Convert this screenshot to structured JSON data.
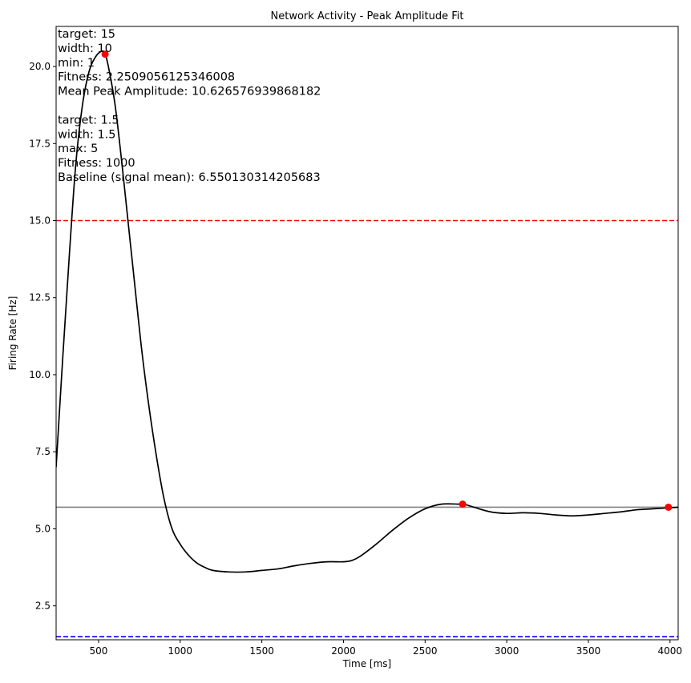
{
  "chart_data": {
    "type": "line",
    "title": "Network Activity - Peak Amplitude Fit",
    "xlabel": "Time [ms]",
    "ylabel": "Firing Rate [Hz]",
    "xlim": [
      240,
      4050
    ],
    "ylim": [
      1.4,
      21.3
    ],
    "x_ticks": [
      500,
      1000,
      1500,
      2000,
      2500,
      3000,
      3500,
      4000
    ],
    "y_ticks": [
      2.5,
      5.0,
      7.5,
      10.0,
      12.5,
      15.0,
      17.5,
      20.0
    ],
    "grid": false,
    "series": [
      {
        "color": "#000000",
        "x": [
          240,
          280,
          320,
          360,
          400,
          440,
          480,
          520,
          540,
          560,
          600,
          640,
          680,
          720,
          760,
          800,
          850,
          900,
          950,
          1000,
          1050,
          1100,
          1150,
          1200,
          1300,
          1400,
          1500,
          1600,
          1700,
          1800,
          1900,
          2000,
          2050,
          2100,
          2200,
          2300,
          2400,
          2500,
          2600,
          2700,
          2750,
          2800,
          2900,
          3000,
          3100,
          3200,
          3300,
          3400,
          3500,
          3600,
          3700,
          3800,
          3900,
          4050
        ],
        "y": [
          7.0,
          10.5,
          13.8,
          16.8,
          18.7,
          19.8,
          20.3,
          20.5,
          20.4,
          20.0,
          18.8,
          17.0,
          15.0,
          13.0,
          11.0,
          9.3,
          7.5,
          6.0,
          5.0,
          4.5,
          4.15,
          3.9,
          3.75,
          3.65,
          3.6,
          3.6,
          3.65,
          3.7,
          3.8,
          3.88,
          3.93,
          3.93,
          3.97,
          4.1,
          4.5,
          4.95,
          5.35,
          5.65,
          5.8,
          5.8,
          5.78,
          5.7,
          5.55,
          5.5,
          5.52,
          5.5,
          5.45,
          5.42,
          5.45,
          5.5,
          5.55,
          5.62,
          5.65,
          5.7
        ]
      }
    ],
    "peaks": {
      "color": "#ff0000",
      "x": [
        540,
        2730,
        3990
      ],
      "y": [
        20.4,
        5.8,
        5.7
      ]
    },
    "reference_lines": [
      {
        "y": 15,
        "color": "#ff0000",
        "style": "dashed"
      },
      {
        "y": 1.5,
        "color": "#0000ff",
        "style": "dashed"
      },
      {
        "y": 5.7,
        "color": "#808080",
        "style": "solid"
      }
    ],
    "annotations": [
      "target: 15",
      "width: 10",
      "min: 1",
      "Fitness: 2.2509056125346008",
      "Mean Peak Amplitude: 10.626576939868182",
      "",
      "target: 1.5",
      "width: 1.5",
      "max: 5",
      "Fitness: 1000",
      "Baseline (signal mean): 6.550130314205683"
    ]
  }
}
